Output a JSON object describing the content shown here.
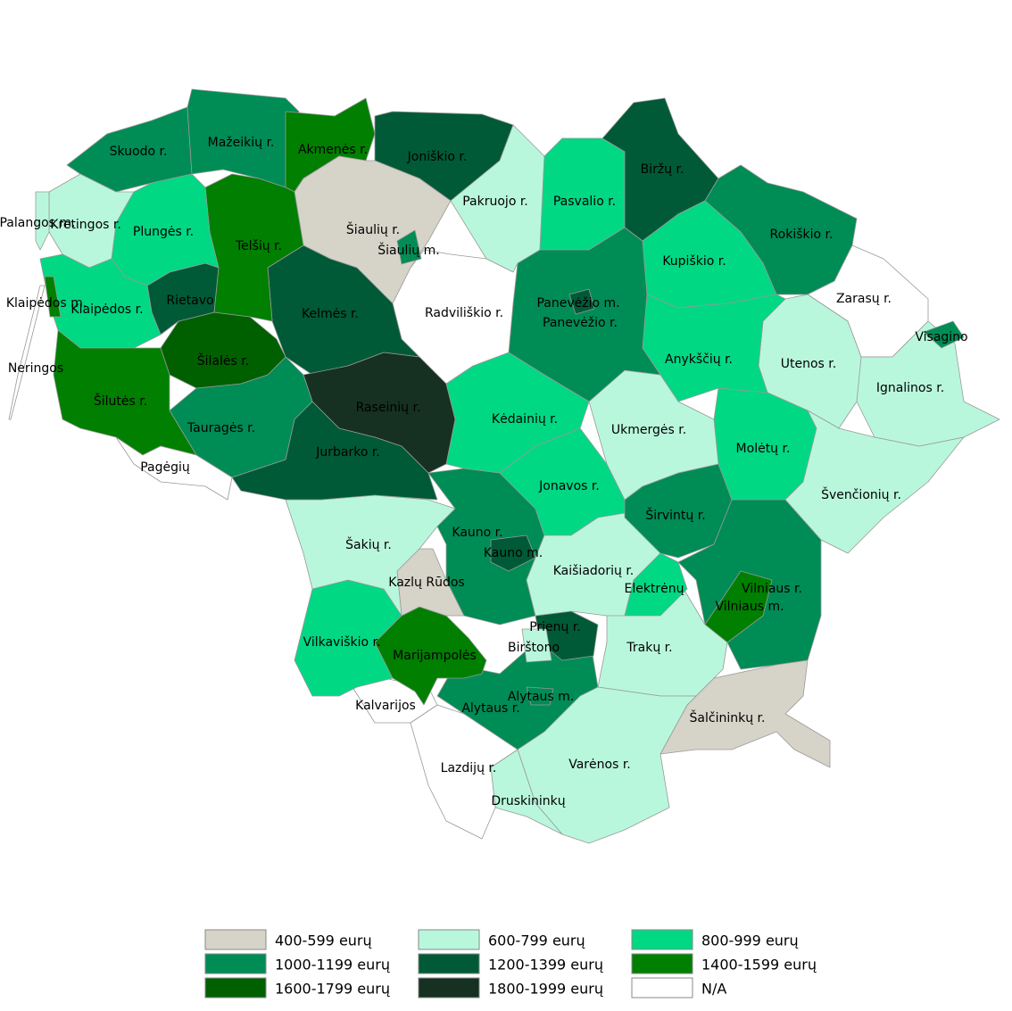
{
  "map": {
    "legend": [
      {
        "label": "400-599 eurų",
        "color": "#d6d3c8"
      },
      {
        "label": "600-799 eurų",
        "color": "#b9f7dd"
      },
      {
        "label": "800-999 eurų",
        "color": "#00d884"
      },
      {
        "label": "1000-1199 eurų",
        "color": "#008c55"
      },
      {
        "label": "1200-1399 eurų",
        "color": "#005a37"
      },
      {
        "label": "1400-1599 eurų",
        "color": "#007f00"
      },
      {
        "label": "1600-1799 eurų",
        "color": "#006000"
      },
      {
        "label": "1800-1999 eurų",
        "color": "#163021"
      },
      {
        "label": "N/A",
        "color": "#ffffff"
      }
    ],
    "regions": [
      {
        "label": "Skuodo r.",
        "class": 3
      },
      {
        "label": "Mažeikių r.",
        "class": 3
      },
      {
        "label": "Akmenės r.",
        "class": 5
      },
      {
        "label": "Joniškio r.",
        "class": 4
      },
      {
        "label": "Pakruojo r.",
        "class": 1
      },
      {
        "label": "Pasvalio r.",
        "class": 2
      },
      {
        "label": "Biržų r.",
        "class": 4
      },
      {
        "label": "Rokiškio r.",
        "class": 3
      },
      {
        "label": "Kupiškio r.",
        "class": 2
      },
      {
        "label": "Zarasų r.",
        "class": 8
      },
      {
        "label": "Ignalinos r.",
        "class": 1
      },
      {
        "label": "Visagino",
        "class": 3
      },
      {
        "label": "Utenos r.",
        "class": 1
      },
      {
        "label": "Anykščių r.",
        "class": 2
      },
      {
        "label": "Molėtų r.",
        "class": 2
      },
      {
        "label": "Švenčionių r.",
        "class": 1
      },
      {
        "label": "Vilniaus r.",
        "class": 3
      },
      {
        "label": "Vilniaus m.",
        "class": 5
      },
      {
        "label": "Šalčininkų r.",
        "class": 0
      },
      {
        "label": "Trakų r.",
        "class": 1
      },
      {
        "label": "Varėnos r.",
        "class": 1
      },
      {
        "label": "Druskininkų",
        "class": 1
      },
      {
        "label": "Lazdijų r.",
        "class": 8
      },
      {
        "label": "Kalvarijos",
        "class": 8
      },
      {
        "label": "Alytaus r.",
        "class": 3
      },
      {
        "label": "Alytaus m.",
        "class": 3
      },
      {
        "label": "Prienų r.",
        "class": 4
      },
      {
        "label": "Birštono",
        "class": 1
      },
      {
        "label": "Vilkaviškio r.",
        "class": 2
      },
      {
        "label": "Marijampolės",
        "class": 5
      },
      {
        "label": "Kazlų Rūdos",
        "class": 0
      },
      {
        "label": "Šakių r.",
        "class": 1
      },
      {
        "label": "Kauno r.",
        "class": 3
      },
      {
        "label": "Kauno m.",
        "class": 4
      },
      {
        "label": "Jonavos r.",
        "class": 2
      },
      {
        "label": "Kaišiadorių r.",
        "class": 1
      },
      {
        "label": "Elektrėnų",
        "class": 2
      },
      {
        "label": "Širvintų r.",
        "class": 3
      },
      {
        "label": "Ukmergės r.",
        "class": 1
      },
      {
        "label": "Kėdainių r.",
        "class": 2
      },
      {
        "label": "Panevėžio r.",
        "class": 3
      },
      {
        "label": "Panevėžio m.",
        "class": 4
      },
      {
        "label": "Radviliškio r.",
        "class": 8
      },
      {
        "label": "Šiaulių r.",
        "class": 0
      },
      {
        "label": "Šiaulių m.",
        "class": 3
      },
      {
        "label": "Kelmės r.",
        "class": 4
      },
      {
        "label": "Raseinių r.",
        "class": 7
      },
      {
        "label": "Jurbarko r.",
        "class": 4
      },
      {
        "label": "Tauragės r.",
        "class": 3
      },
      {
        "label": "Šilalės r.",
        "class": 6
      },
      {
        "label": "Rietavo",
        "class": 4
      },
      {
        "label": "Telšių r.",
        "class": 5
      },
      {
        "label": "Plungės r.",
        "class": 2
      },
      {
        "label": "Kretingos r.",
        "class": 1
      },
      {
        "label": "Palangos m.",
        "class": 1
      },
      {
        "label": "Klaipėdos r.",
        "class": 2
      },
      {
        "label": "Klaipėdos m.",
        "class": 5
      },
      {
        "label": "Neringos",
        "class": 8
      },
      {
        "label": "Šilutės r.",
        "class": 5
      },
      {
        "label": "Pagėgių",
        "class": 8
      }
    ]
  }
}
